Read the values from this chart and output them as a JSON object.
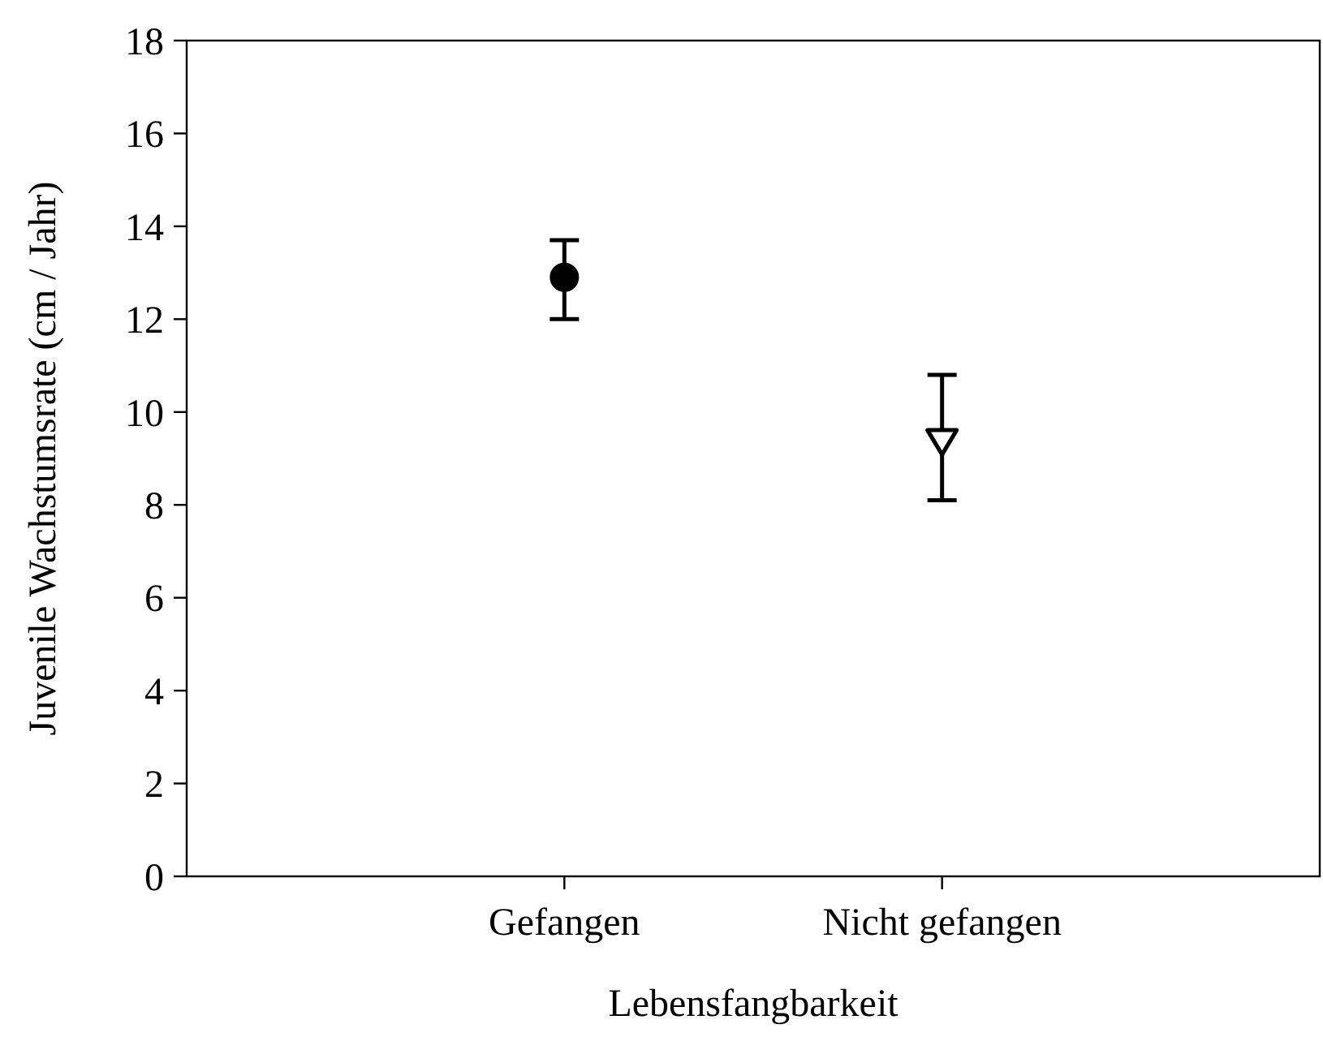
{
  "chart_data": {
    "type": "scatter",
    "xlabel": "Lebensfangbarkeit",
    "ylabel": "Juvenile Wachstumsrate (cm / Jahr)",
    "categories": [
      "Gefangen",
      "Nicht gefangen"
    ],
    "series": [
      {
        "x": [
          "Gefangen"
        ],
        "values": [
          12.9
        ],
        "errors": [
          [
            12.0,
            13.7
          ]
        ],
        "color": "#000000",
        "marker": "circle"
      },
      {
        "x": [
          "Nicht gefangen"
        ],
        "values": [
          9.4
        ],
        "errors": [
          [
            8.1,
            10.8
          ]
        ],
        "color": "#000000",
        "marker": "triangle"
      }
    ],
    "ylim": [
      0,
      18
    ],
    "yticks": [
      0,
      2,
      4,
      6,
      8,
      10,
      12,
      14,
      16,
      18
    ],
    "grid": false
  }
}
